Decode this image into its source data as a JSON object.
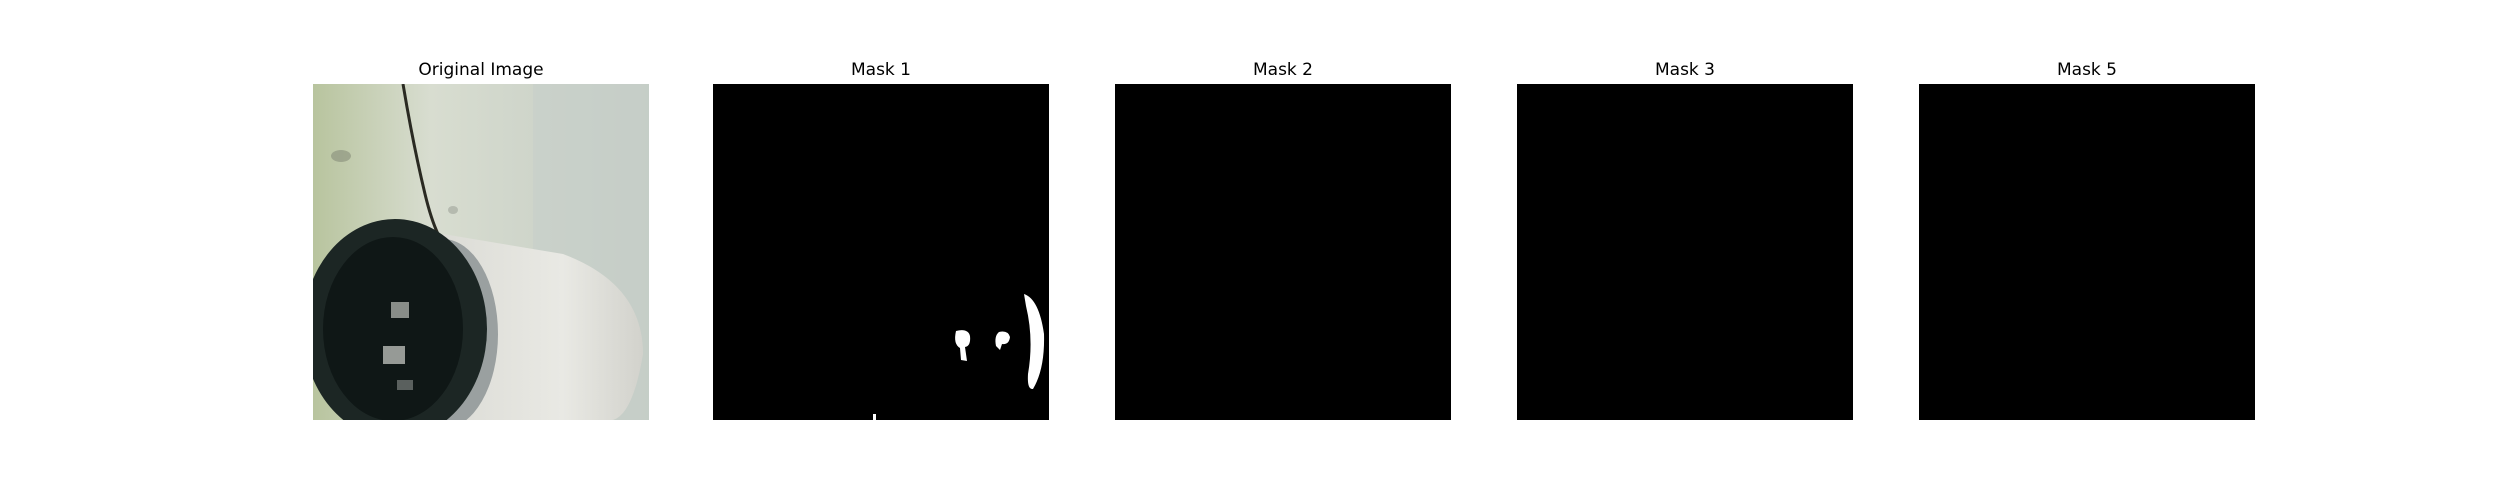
{
  "panels": [
    {
      "title": "Original Image",
      "kind": "photo"
    },
    {
      "title": "Mask 1",
      "kind": "mask",
      "fill_color": "#000000",
      "foreground_color": "#ffffff"
    },
    {
      "title": "Mask 2",
      "kind": "mask",
      "fill_color": "#000000"
    },
    {
      "title": "Mask 3",
      "kind": "mask",
      "fill_color": "#000000"
    },
    {
      "title": "Mask 5",
      "kind": "mask",
      "fill_color": "#000000"
    }
  ]
}
